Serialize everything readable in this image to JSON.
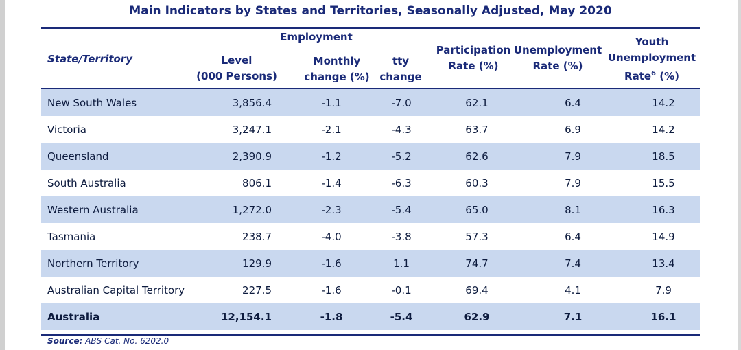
{
  "title": "Main Indicators by States and Territories, Seasonally Adjusted, May 2020",
  "headers": {
    "state": "State/Territory",
    "employment": "Employment",
    "level_1": "Level",
    "level_2": "(000 Persons)",
    "monthly_1": "Monthly",
    "monthly_2": "change (%)",
    "tty_1": "tty",
    "tty_2": "change (%)",
    "participation_1": "Participation",
    "participation_2": "Rate (%)",
    "unemployment_1": "Unemployment",
    "unemployment_2": "Rate (%)",
    "youth_1": "Youth",
    "youth_2": "Unemployment",
    "youth_3": "Rate",
    "youth_sup": "6",
    "youth_4": " (%)"
  },
  "rows": [
    {
      "name": "New South Wales",
      "level": "3,856.4",
      "monthly": "-1.1",
      "tty": "-7.0",
      "participation": "62.1",
      "unemployment": "6.4",
      "youth": "14.2"
    },
    {
      "name": "Victoria",
      "level": "3,247.1",
      "monthly": "-2.1",
      "tty": "-4.3",
      "participation": "63.7",
      "unemployment": "6.9",
      "youth": "14.2"
    },
    {
      "name": "Queensland",
      "level": "2,390.9",
      "monthly": "-1.2",
      "tty": "-5.2",
      "participation": "62.6",
      "unemployment": "7.9",
      "youth": "18.5"
    },
    {
      "name": "South Australia",
      "level": "806.1",
      "monthly": "-1.4",
      "tty": "-6.3",
      "participation": "60.3",
      "unemployment": "7.9",
      "youth": "15.5"
    },
    {
      "name": "Western Australia",
      "level": "1,272.0",
      "monthly": "-2.3",
      "tty": "-5.4",
      "participation": "65.0",
      "unemployment": "8.1",
      "youth": "16.3"
    },
    {
      "name": "Tasmania",
      "level": "238.7",
      "monthly": "-4.0",
      "tty": "-3.8",
      "participation": "57.3",
      "unemployment": "6.4",
      "youth": "14.9"
    },
    {
      "name": "Northern Territory",
      "level": "129.9",
      "monthly": "-1.6",
      "tty": "1.1",
      "participation": "74.7",
      "unemployment": "7.4",
      "youth": "13.4"
    },
    {
      "name": "Australian Capital Territory",
      "level": "227.5",
      "monthly": "-1.6",
      "tty": "-0.1",
      "participation": "69.4",
      "unemployment": "4.1",
      "youth": "7.9"
    },
    {
      "name": "Australia",
      "level": "12,154.1",
      "monthly": "-1.8",
      "tty": "-5.4",
      "participation": "62.9",
      "unemployment": "7.1",
      "youth": "16.1"
    }
  ],
  "source": {
    "label": "Source:",
    "text": " ABS Cat. No. 6202.0"
  }
}
